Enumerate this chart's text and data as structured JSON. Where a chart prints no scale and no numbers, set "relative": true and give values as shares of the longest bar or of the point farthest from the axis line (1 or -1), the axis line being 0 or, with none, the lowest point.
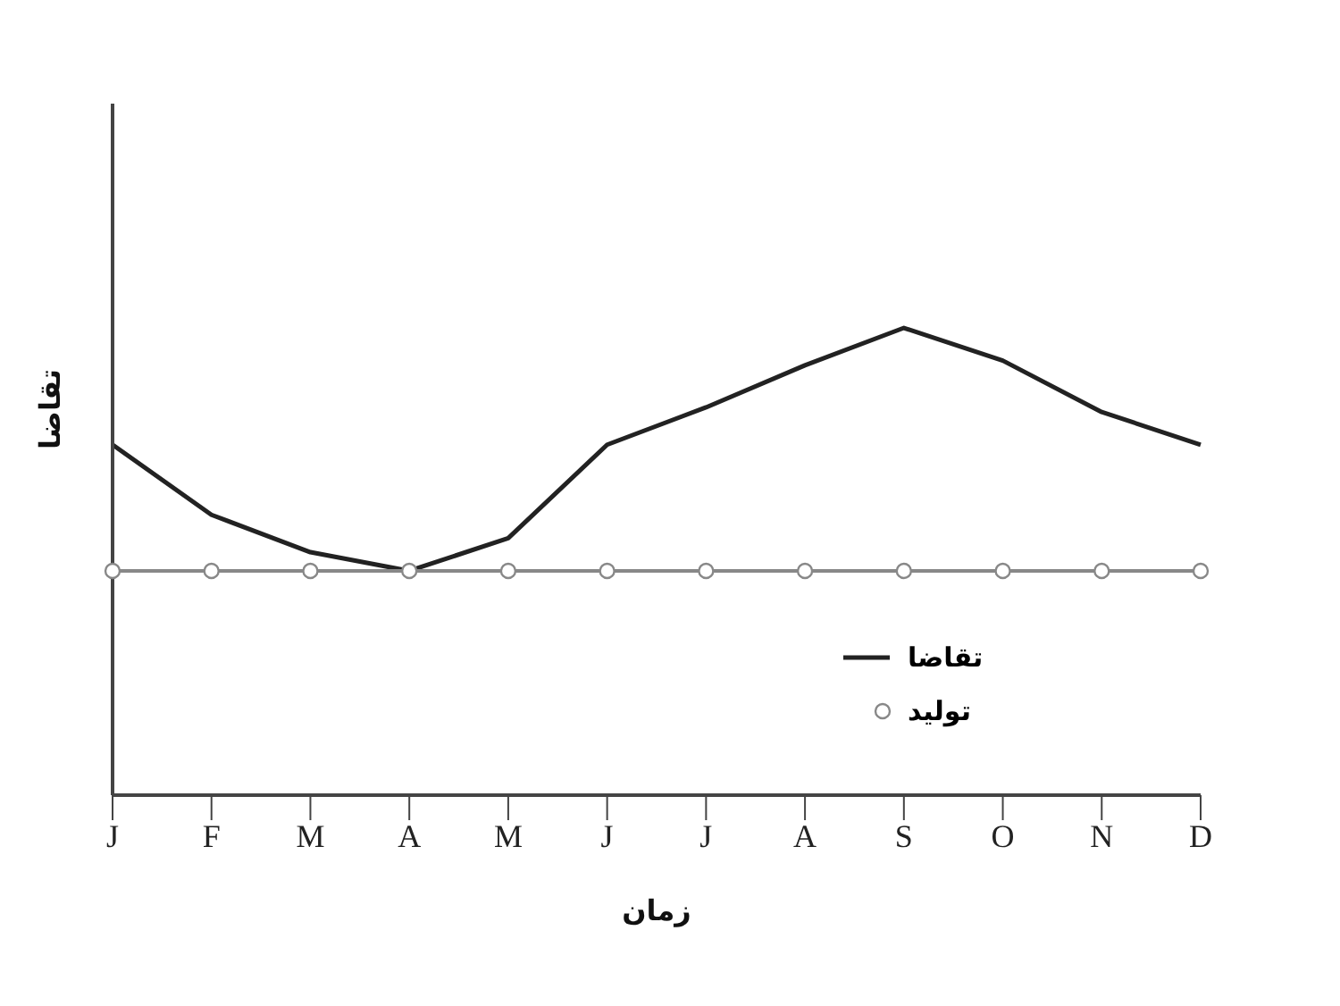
{
  "chart_data": {
    "type": "line",
    "relative": true,
    "xlabel": "زمان",
    "ylabel": "تقاضا",
    "categories": [
      "J",
      "F",
      "M",
      "A",
      "M",
      "J",
      "J",
      "A",
      "S",
      "O",
      "N",
      "D"
    ],
    "series": [
      {
        "name": "تقاضا",
        "color": "#222222",
        "marker": "none",
        "values": [
          0.75,
          0.6,
          0.52,
          0.48,
          0.55,
          0.75,
          0.83,
          0.92,
          1,
          0.93,
          0.82,
          0.75
        ]
      },
      {
        "name": "تولید",
        "color": "#888888",
        "marker": "circle",
        "values": [
          0.48,
          0.48,
          0.48,
          0.48,
          0.48,
          0.48,
          0.48,
          0.48,
          0.48,
          0.48,
          0.48,
          0.48
        ]
      }
    ],
    "legend": "right",
    "grid": false
  }
}
